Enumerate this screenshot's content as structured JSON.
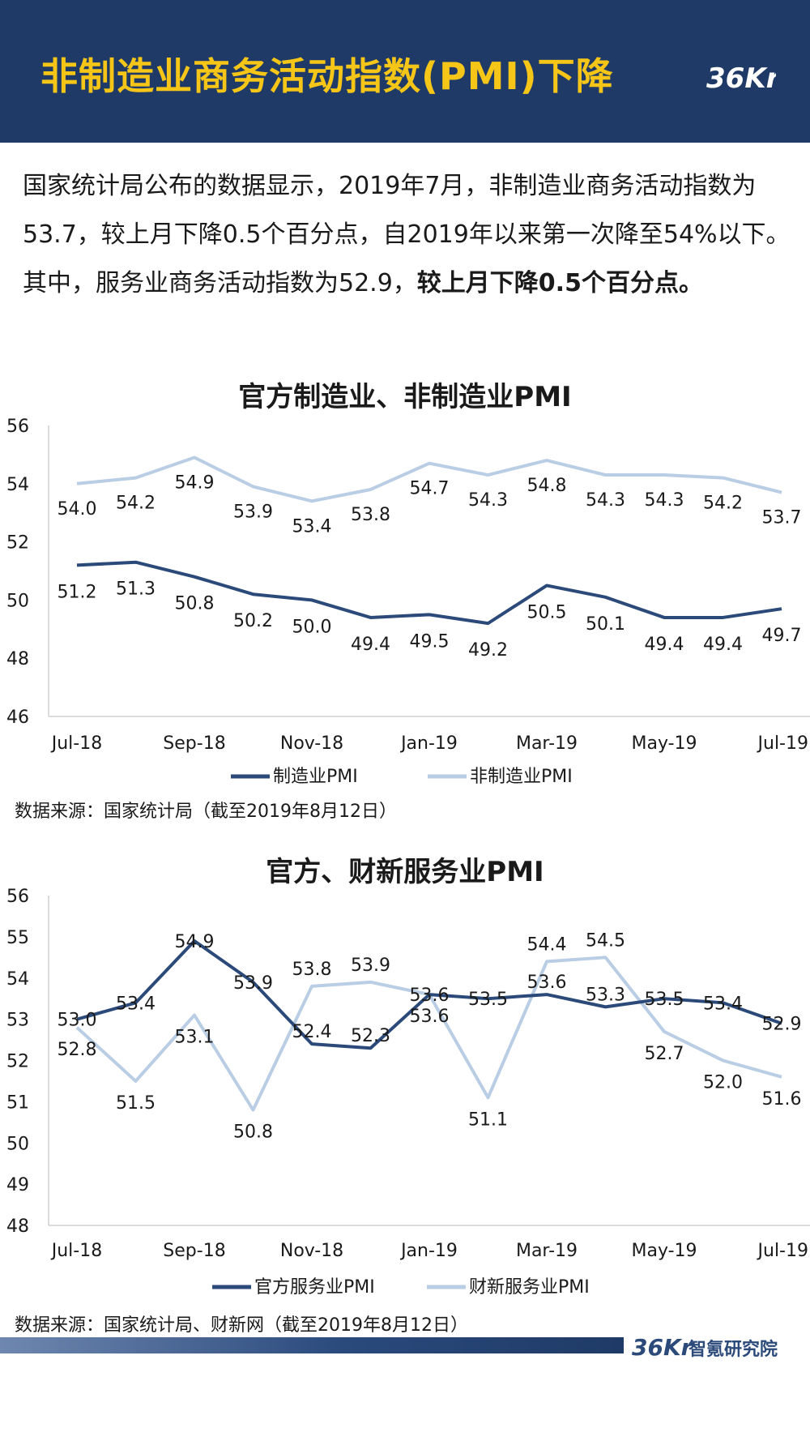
{
  "header": {
    "title": "非制造业商务活动指数(PMI)下降",
    "logo_text": "36Kr"
  },
  "intro": {
    "para1": "国家统计局公布的数据显示，2019年7月，非制造业商务活动指数为53.7，较上月下降0.5个百分点，自2019年以来第一次降至54%以下。",
    "para2_normal": "其中，服务业商务活动指数为52.9，",
    "para2_bold": "较上月下降0.5个百分点。"
  },
  "chart_data": [
    {
      "type": "line",
      "title": "官方制造业、非制造业PMI",
      "categories": [
        "Jul-18",
        "Aug-18",
        "Sep-18",
        "Oct-18",
        "Nov-18",
        "Dec-18",
        "Jan-19",
        "Feb-19",
        "Mar-19",
        "Apr-19",
        "May-19",
        "Jun-19",
        "Jul-19"
      ],
      "x_tick_labels": [
        "Jul-18",
        "",
        "Sep-18",
        "",
        "Nov-18",
        "",
        "Jan-19",
        "",
        "Mar-19",
        "",
        "May-19",
        "",
        "Jul-19"
      ],
      "ylim": [
        46,
        56
      ],
      "yticks": [
        46,
        48,
        50,
        52,
        54,
        56
      ],
      "legend_position": "bottom",
      "series": [
        {
          "name": "制造业PMI",
          "color": "#2b4a7a",
          "values": [
            51.2,
            51.3,
            50.8,
            50.2,
            50.0,
            49.4,
            49.5,
            49.2,
            50.5,
            50.1,
            49.4,
            49.4,
            49.7
          ]
        },
        {
          "name": "非制造业PMI",
          "color": "#b9cde4",
          "values": [
            54.0,
            54.2,
            54.9,
            53.9,
            53.4,
            53.8,
            54.7,
            54.3,
            54.8,
            54.3,
            54.3,
            54.2,
            53.7
          ]
        }
      ],
      "source": "数据来源：国家统计局（截至2019年8月12日）"
    },
    {
      "type": "line",
      "title": "官方、财新服务业PMI",
      "categories": [
        "Jul-18",
        "Aug-18",
        "Sep-18",
        "Oct-18",
        "Nov-18",
        "Dec-18",
        "Jan-19",
        "Feb-19",
        "Mar-19",
        "Apr-19",
        "May-19",
        "Jun-19",
        "Jul-19"
      ],
      "x_tick_labels": [
        "Jul-18",
        "",
        "Sep-18",
        "",
        "Nov-18",
        "",
        "Jan-19",
        "",
        "Mar-19",
        "",
        "May-19",
        "",
        "Jul-19"
      ],
      "ylim": [
        48,
        56
      ],
      "yticks": [
        48,
        49,
        50,
        51,
        52,
        53,
        54,
        55,
        56
      ],
      "legend_position": "bottom",
      "series": [
        {
          "name": "官方服务业PMI",
          "color": "#2b4a7a",
          "values": [
            53.0,
            53.4,
            54.9,
            53.9,
            52.4,
            52.3,
            53.6,
            53.5,
            53.6,
            53.3,
            53.5,
            53.4,
            52.9
          ]
        },
        {
          "name": "财新服务业PMI",
          "color": "#b9cde4",
          "values": [
            52.8,
            51.5,
            53.1,
            50.8,
            53.8,
            53.9,
            53.6,
            51.1,
            54.4,
            54.5,
            52.7,
            52.0,
            51.6
          ]
        }
      ],
      "source": "数据来源：国家统计局、财新网（截至2019年8月12日）"
    }
  ],
  "footer": {
    "logo_text": "36Kr",
    "org_name": "智氪研究院"
  }
}
